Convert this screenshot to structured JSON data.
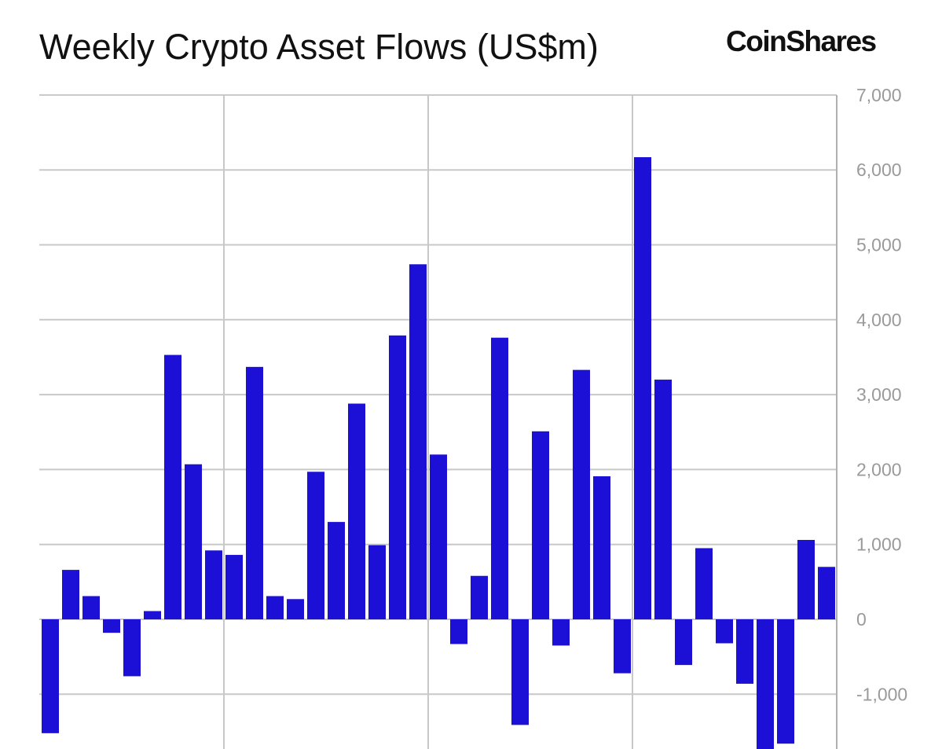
{
  "chart_data": {
    "type": "bar",
    "title": "Weekly Crypto Asset Flows (US$m)",
    "brand": "CoinShares",
    "xlabel": "",
    "ylabel": "",
    "ylim": [
      -1730,
      7000
    ],
    "y_ticks": [
      7000,
      6000,
      5000,
      4000,
      3000,
      2000,
      1000,
      0,
      -1000
    ],
    "y_tick_labels": [
      "7,000",
      "6,000",
      "5,000",
      "4,000",
      "3,000",
      "2,000",
      "1,000",
      "0",
      "-1,000"
    ],
    "y_axis_side": "right",
    "grid": true,
    "bar_color": "#1c10d6",
    "values": [
      -1520,
      660,
      310,
      -180,
      -760,
      110,
      3530,
      2070,
      920,
      860,
      3370,
      310,
      270,
      1970,
      1300,
      2880,
      990,
      3790,
      4740,
      2200,
      -330,
      580,
      3760,
      -1410,
      2510,
      -350,
      3330,
      1910,
      -720,
      6170,
      3200,
      -610,
      950,
      -320,
      -860,
      -1800,
      -1660,
      1060,
      700
    ]
  }
}
